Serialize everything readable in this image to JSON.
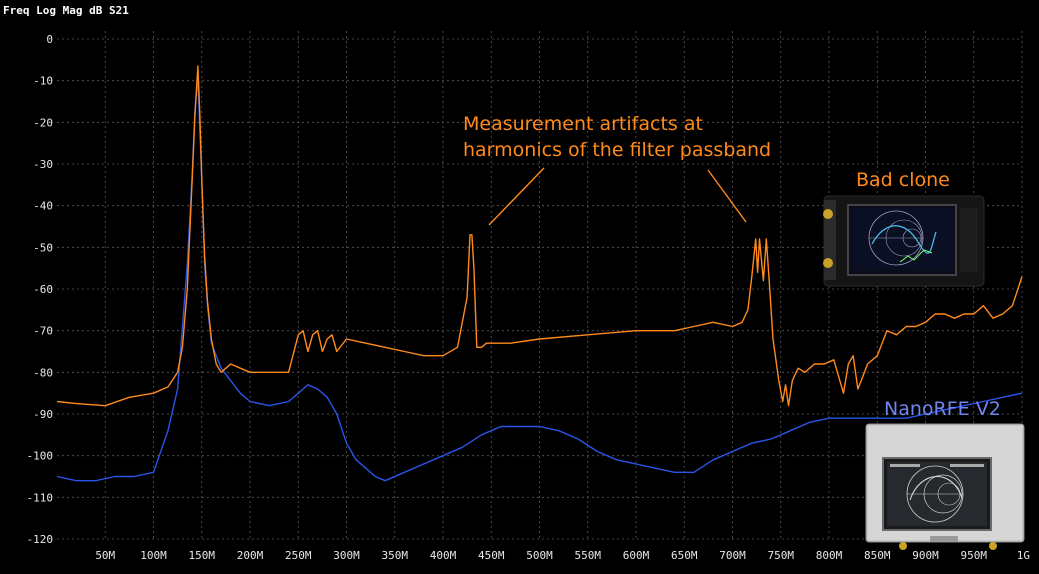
{
  "header": {
    "title": "Freq Log Mag dB S21"
  },
  "colors": {
    "bad_clone": "#ff8a1c",
    "nanorfe": "#2a55e8",
    "annotation_orange": "#ff8a1c",
    "annotation_blue": "#6f86f0",
    "grid": "#5a5a5a",
    "background": "#000000"
  },
  "annotations": {
    "artifacts_line1": "Measurement artifacts at",
    "artifacts_line2": "harmonics of the filter passband",
    "bad_clone_label": "Bad clone",
    "nanorfe_label": "NanoRFE V2"
  },
  "chart_data": {
    "type": "line",
    "title": "Freq Log Mag dB S21",
    "xlabel": "",
    "ylabel": "",
    "xlim": [
      0,
      1000
    ],
    "ylim": [
      -120,
      0
    ],
    "x_unit": "MHz",
    "grid": true,
    "x_tick_labels": [
      "50M",
      "100M",
      "150M",
      "200M",
      "250M",
      "300M",
      "350M",
      "400M",
      "450M",
      "500M",
      "550M",
      "600M",
      "650M",
      "700M",
      "750M",
      "800M",
      "850M",
      "900M",
      "950M",
      "1G"
    ],
    "y_tick_labels": [
      "0",
      "-10",
      "-20",
      "-30",
      "-40",
      "-50",
      "-60",
      "-70",
      "-80",
      "-90",
      "-100",
      "-110",
      "-120"
    ],
    "series": [
      {
        "name": "Bad clone",
        "color": "#ff8a1c",
        "x": [
          0,
          20,
          50,
          75,
          100,
          115,
          125,
          130,
          135,
          140,
          143,
          146,
          148,
          150,
          153,
          156,
          160,
          165,
          170,
          175,
          180,
          190,
          200,
          210,
          220,
          230,
          240,
          250,
          255,
          260,
          265,
          270,
          275,
          280,
          285,
          290,
          300,
          320,
          340,
          360,
          380,
          400,
          415,
          425,
          428,
          430,
          432,
          435,
          440,
          445,
          450,
          470,
          500,
          550,
          600,
          620,
          640,
          660,
          680,
          700,
          710,
          716,
          720,
          724,
          726,
          728,
          732,
          735,
          738,
          742,
          748,
          752,
          755,
          758,
          762,
          768,
          775,
          785,
          795,
          805,
          815,
          820,
          825,
          830,
          835,
          840,
          850,
          860,
          870,
          880,
          890,
          900,
          910,
          920,
          930,
          940,
          950,
          960,
          970,
          980,
          990,
          1000
        ],
        "y": [
          -87,
          -87.5,
          -88,
          -86,
          -85,
          -83.5,
          -80,
          -74,
          -60,
          -34,
          -18,
          -6.5,
          -18,
          -34,
          -52,
          -63,
          -72,
          -78,
          -80,
          -79,
          -78,
          -79,
          -80,
          -80,
          -80,
          -80,
          -80,
          -71,
          -70,
          -75,
          -71,
          -70,
          -75,
          -72,
          -71,
          -75,
          -72,
          -73,
          -74,
          -75,
          -76,
          -76,
          -74,
          -62,
          -47,
          -47,
          -55,
          -74,
          -74,
          -73,
          -73,
          -73,
          -72,
          -71,
          -70,
          -70,
          -70,
          -69,
          -68,
          -69,
          -68,
          -65,
          -57,
          -48,
          -56,
          -48,
          -58,
          -48,
          -58,
          -72,
          -82,
          -87,
          -83,
          -88,
          -82,
          -79,
          -80,
          -78,
          -78,
          -77,
          -85,
          -78,
          -76,
          -84,
          -81,
          -78,
          -76,
          -70,
          -71,
          -69,
          -69,
          -68,
          -66,
          -66,
          -67,
          -66,
          -66,
          -64,
          -67,
          -66,
          -64,
          -57
        ]
      },
      {
        "name": "NanoRFE V2",
        "color": "#2a55e8",
        "x": [
          0,
          20,
          40,
          60,
          80,
          100,
          115,
          125,
          135,
          140,
          143,
          146,
          150,
          153,
          156,
          160,
          170,
          180,
          190,
          200,
          220,
          240,
          250,
          255,
          260,
          270,
          280,
          290,
          300,
          310,
          320,
          330,
          340,
          360,
          380,
          400,
          420,
          440,
          460,
          480,
          500,
          520,
          540,
          560,
          580,
          600,
          620,
          640,
          660,
          680,
          690,
          700,
          720,
          740,
          760,
          780,
          800,
          820,
          840,
          860,
          880,
          900,
          920,
          940,
          960,
          980,
          1000
        ],
        "y": [
          -105,
          -106,
          -106,
          -105,
          -105,
          -104,
          -94,
          -84,
          -54,
          -33,
          -17,
          -9,
          -34,
          -54,
          -64,
          -73,
          -79,
          -82,
          -85,
          -87,
          -88,
          -87,
          -85,
          -84,
          -83,
          -84,
          -86,
          -90,
          -97,
          -101,
          -103,
          -105,
          -106,
          -104,
          -102,
          -100,
          -98,
          -95,
          -93,
          -93,
          -93,
          -94,
          -96,
          -99,
          -101,
          -102,
          -103,
          -104,
          -104,
          -101,
          -100,
          -99,
          -97,
          -96,
          -94,
          -92,
          -91,
          -91,
          -91,
          -91,
          -91,
          -90,
          -89,
          -88,
          -87,
          -86,
          -85
        ]
      }
    ]
  }
}
